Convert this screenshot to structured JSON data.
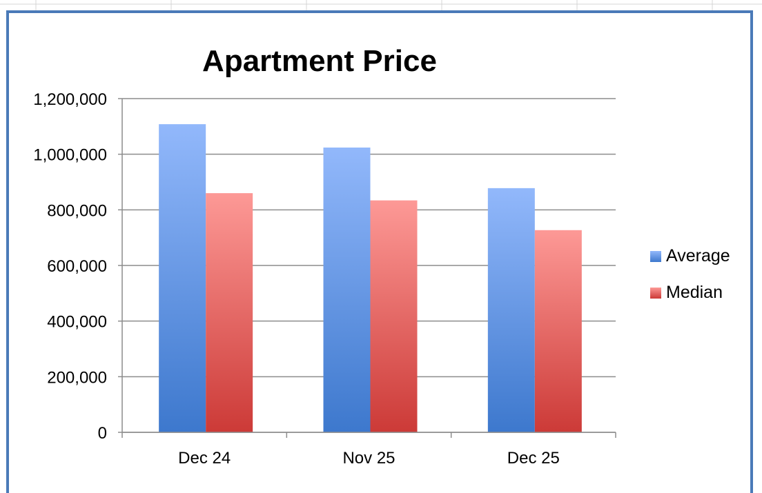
{
  "chart_data": {
    "type": "bar",
    "title": "Apartment Price",
    "categories": [
      "Dec 24",
      "Nov  25",
      "Dec 25"
    ],
    "series": [
      {
        "name": "Average",
        "values": [
          1108000,
          1024000,
          878000
        ],
        "color_top": "#92b8fb",
        "color_bottom": "#3d78cd"
      },
      {
        "name": "Median",
        "values": [
          860000,
          834000,
          727000
        ],
        "color_top": "#fd9996",
        "color_bottom": "#cc3a37"
      }
    ],
    "ylim": [
      0,
      1200000
    ],
    "yticks": [
      0,
      200000,
      400000,
      600000,
      800000,
      1000000,
      1200000
    ],
    "ytick_labels": [
      "0",
      "200,000",
      "400,000",
      "600,000",
      "800,000",
      "1,000,000",
      "1,200,000"
    ],
    "xlabel": "",
    "ylabel": "",
    "grid": true,
    "legend_position": "right"
  },
  "colors": {
    "frame_border": "#4a7ab8",
    "gridline": "#8c8c8c",
    "sheet_gridline": "#d4d4d4"
  }
}
